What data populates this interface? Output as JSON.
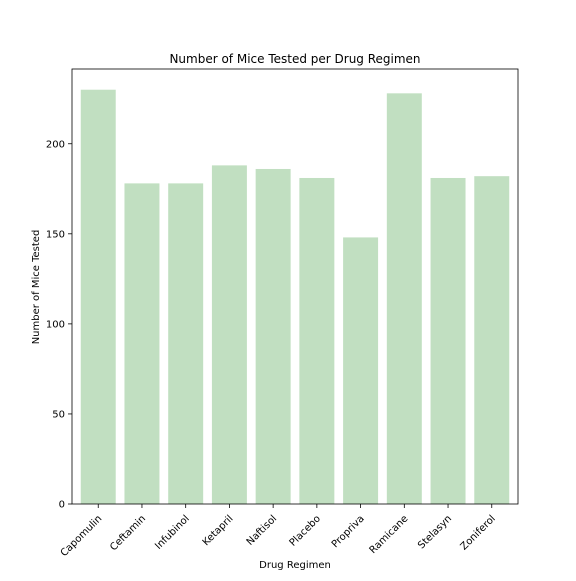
{
  "chart_data": {
    "type": "bar",
    "title": "Number of Mice Tested per Drug Regimen",
    "xlabel": "Drug Regimen",
    "ylabel": "Number of Mice Tested",
    "categories": [
      "Capomulin",
      "Ceftamin",
      "Infubinol",
      "Ketapril",
      "Naftisol",
      "Placebo",
      "Propriva",
      "Ramicane",
      "Stelasyn",
      "Zoniferol"
    ],
    "values": [
      230,
      178,
      178,
      188,
      186,
      181,
      148,
      228,
      181,
      182
    ],
    "ylim": [
      0,
      241.5
    ],
    "yticks": [
      0,
      50,
      100,
      150,
      200
    ],
    "grid": false,
    "legend": "none",
    "bar_color": "#c1dfc1",
    "axis_color": "#000000"
  }
}
